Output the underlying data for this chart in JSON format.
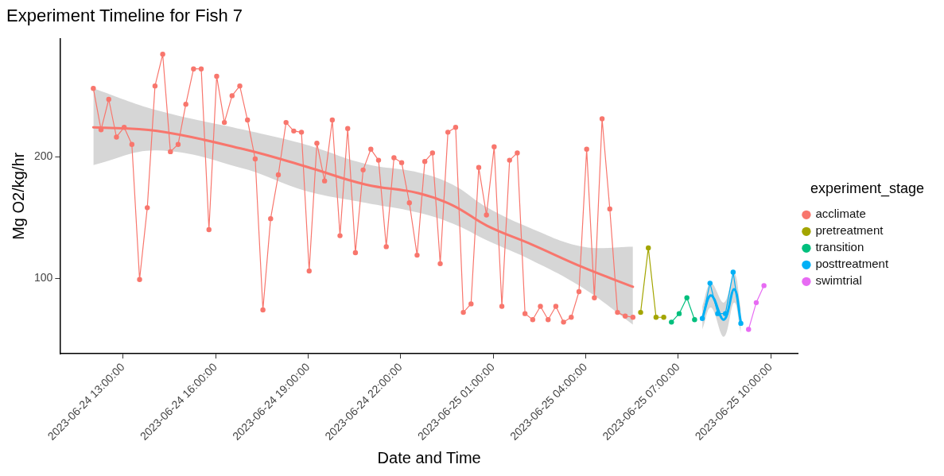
{
  "chart_data": {
    "type": "line",
    "title": "Experiment Timeline for Fish 7",
    "xlabel": "Date and Time",
    "ylabel": "Mg O2/kg/hr",
    "legend_title": "experiment_stage",
    "legend": "right",
    "grid": false,
    "marker": "circle",
    "xlim": [
      "2023-06-24T10:57",
      "2023-06-25T10:54"
    ],
    "xticks": [
      {
        "value": "2023-06-24T13:00",
        "label": "2023-06-24 13:00:00"
      },
      {
        "value": "2023-06-24T16:00",
        "label": "2023-06-24 16:00:00"
      },
      {
        "value": "2023-06-24T19:00",
        "label": "2023-06-24 19:00:00"
      },
      {
        "value": "2023-06-24T22:00",
        "label": "2023-06-24 22:00:00"
      },
      {
        "value": "2023-06-25T01:00",
        "label": "2023-06-25 01:00:00"
      },
      {
        "value": "2023-06-25T04:00",
        "label": "2023-06-25 04:00:00"
      },
      {
        "value": "2023-06-25T07:00",
        "label": "2023-06-25 07:00:00"
      },
      {
        "value": "2023-06-25T10:00",
        "label": "2023-06-25 10:00:00"
      }
    ],
    "ylim": [
      38,
      297
    ],
    "yticks": [
      100,
      200
    ],
    "series": [
      {
        "type": "line",
        "marker": "none",
        "color": "#f8766d",
        "x": [
          "2023-06-24T12:02",
          "2023-06-24T14:06",
          "2023-06-24T16:55",
          "2023-06-24T18:54",
          "2023-06-24T20:52",
          "2023-06-24T22:34",
          "2023-06-24T23:41",
          "2023-06-25T00:49",
          "2023-06-25T02:14",
          "2023-06-25T03:55",
          "2023-06-25T05:32"
        ],
        "values": [
          224,
          221,
          206,
          192,
          177,
          170,
          160,
          143,
          128,
          109,
          93
        ],
        "lower": [
          193,
          205,
          190,
          172,
          162,
          154,
          145,
          131,
          115,
          92,
          62
        ],
        "upper": [
          256,
          238,
          222,
          210,
          194,
          187,
          177,
          158,
          141,
          126,
          126
        ]
      },
      {
        "type": "line",
        "marker": "none",
        "color": "#00b0f6",
        "x": [
          "2023-06-25T07:47",
          "2023-06-25T08:04",
          "2023-06-25T08:29",
          "2023-06-25T08:49",
          "2023-06-25T09:02"
        ],
        "values": [
          67,
          86,
          66,
          91,
          64
        ],
        "lower": [
          58,
          76,
          52,
          80,
          55
        ],
        "upper": [
          77,
          96,
          80,
          104,
          75
        ]
      },
      {
        "name": "acclimate",
        "color": "#f8766d",
        "x": [
          "2023-06-24T12:02",
          "2023-06-24T12:17",
          "2023-06-24T12:32",
          "2023-06-24T12:47",
          "2023-06-24T13:02",
          "2023-06-24T13:17",
          "2023-06-24T13:32",
          "2023-06-24T13:47",
          "2023-06-24T14:02",
          "2023-06-24T14:17",
          "2023-06-24T14:32",
          "2023-06-24T14:47",
          "2023-06-24T15:02",
          "2023-06-24T15:17",
          "2023-06-24T15:32",
          "2023-06-24T15:47",
          "2023-06-24T16:02",
          "2023-06-24T16:17",
          "2023-06-24T16:32",
          "2023-06-24T16:47",
          "2023-06-24T17:02",
          "2023-06-24T17:17",
          "2023-06-24T17:32",
          "2023-06-24T17:47",
          "2023-06-24T18:02",
          "2023-06-24T18:17",
          "2023-06-24T18:32",
          "2023-06-24T18:47",
          "2023-06-24T19:02",
          "2023-06-24T19:17",
          "2023-06-24T19:32",
          "2023-06-24T19:47",
          "2023-06-24T20:02",
          "2023-06-24T20:17",
          "2023-06-24T20:32",
          "2023-06-24T20:47",
          "2023-06-24T21:02",
          "2023-06-24T21:17",
          "2023-06-24T21:32",
          "2023-06-24T21:47",
          "2023-06-24T22:02",
          "2023-06-24T22:17",
          "2023-06-24T22:32",
          "2023-06-24T22:47",
          "2023-06-24T23:02",
          "2023-06-24T23:17",
          "2023-06-24T23:32",
          "2023-06-24T23:47",
          "2023-06-25T00:02",
          "2023-06-25T00:17",
          "2023-06-25T00:32",
          "2023-06-25T00:47",
          "2023-06-25T01:02",
          "2023-06-25T01:17",
          "2023-06-25T01:32",
          "2023-06-25T01:47",
          "2023-06-25T02:02",
          "2023-06-25T02:17",
          "2023-06-25T02:32",
          "2023-06-25T02:47",
          "2023-06-25T03:02",
          "2023-06-25T03:17",
          "2023-06-25T03:32",
          "2023-06-25T03:47",
          "2023-06-25T04:02",
          "2023-06-25T04:17",
          "2023-06-25T04:32",
          "2023-06-25T04:47",
          "2023-06-25T05:02",
          "2023-06-25T05:17",
          "2023-06-25T05:32"
        ],
        "values": [
          256,
          222,
          247,
          216,
          224,
          210,
          99,
          158,
          258,
          284,
          204,
          210,
          243,
          272,
          272,
          140,
          266,
          228,
          250,
          258,
          230,
          198,
          74,
          149,
          185,
          228,
          221,
          220,
          106,
          211,
          180,
          230,
          135,
          223,
          121,
          189,
          206,
          197,
          126,
          199,
          195,
          162,
          119,
          196,
          203,
          112,
          220,
          224,
          72,
          79,
          191,
          152,
          208,
          77,
          197,
          203,
          71,
          66,
          77,
          66,
          77,
          64,
          68,
          89,
          206,
          84,
          231,
          157,
          72,
          69,
          68
        ]
      },
      {
        "name": "pretreatment",
        "color": "#a3a500",
        "x": [
          "2023-06-25T05:47",
          "2023-06-25T06:02",
          "2023-06-25T06:17",
          "2023-06-25T06:32"
        ],
        "values": [
          72,
          125,
          68,
          68
        ]
      },
      {
        "name": "transition",
        "color": "#00bf7d",
        "x": [
          "2023-06-25T06:47",
          "2023-06-25T07:02",
          "2023-06-25T07:17",
          "2023-06-25T07:32"
        ],
        "values": [
          64,
          71,
          84,
          66
        ]
      },
      {
        "name": "posttreatment",
        "color": "#00b0f6",
        "x": [
          "2023-06-25T07:47",
          "2023-06-25T08:02",
          "2023-06-25T08:17",
          "2023-06-25T08:32",
          "2023-06-25T08:47",
          "2023-06-25T09:02"
        ],
        "values": [
          67,
          96,
          71,
          71,
          105,
          63
        ]
      },
      {
        "name": "swimtrial",
        "color": "#e76bf3",
        "x": [
          "2023-06-25T09:17",
          "2023-06-25T09:32",
          "2023-06-25T09:47"
        ],
        "values": [
          58,
          80,
          94
        ]
      }
    ]
  }
}
